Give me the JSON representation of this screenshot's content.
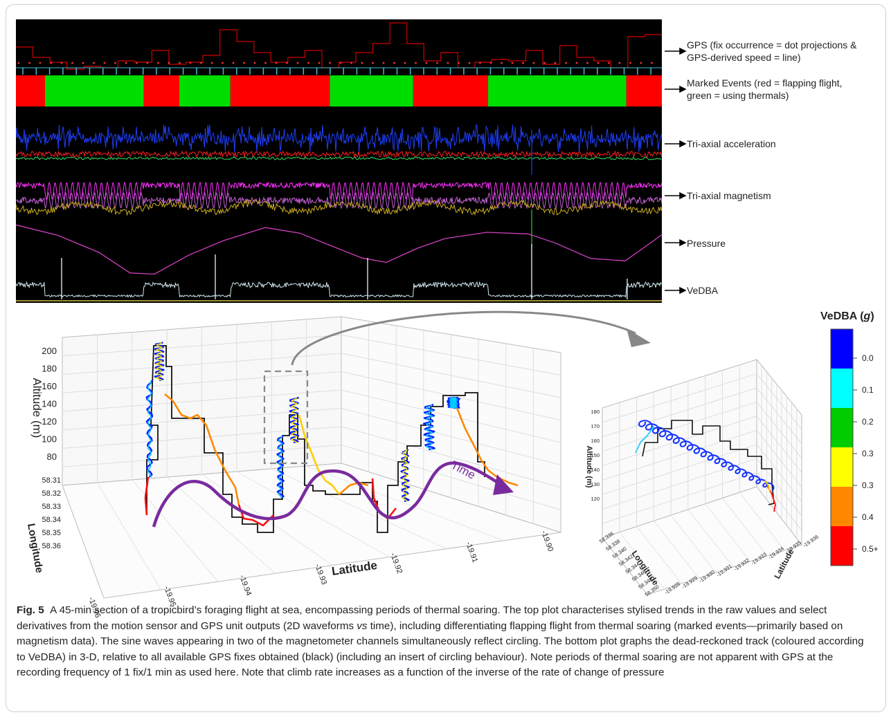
{
  "top_plot": {
    "labels": [
      {
        "key": "gps",
        "text": "GPS (fix occurrence = dot projections &\nGPS-derived speed = line)"
      },
      {
        "key": "events",
        "text": "Marked Events (red = flapping flight,\ngreen = using thermals)"
      },
      {
        "key": "acc",
        "text": "Tri-axial acceleration"
      },
      {
        "key": "mag",
        "text": "Tri-axial magnetism"
      },
      {
        "key": "pressure",
        "text": "Pressure"
      },
      {
        "key": "vedba",
        "text": "VeDBA"
      }
    ],
    "marked_events": [
      {
        "state": "flapping",
        "start": 0.0,
        "end": 0.045
      },
      {
        "state": "thermal",
        "start": 0.045,
        "end": 0.198
      },
      {
        "state": "flapping",
        "start": 0.198,
        "end": 0.253
      },
      {
        "state": "thermal",
        "start": 0.253,
        "end": 0.332
      },
      {
        "state": "flapping",
        "start": 0.332,
        "end": 0.486
      },
      {
        "state": "thermal",
        "start": 0.486,
        "end": 0.615
      },
      {
        "state": "flapping",
        "start": 0.615,
        "end": 0.731
      },
      {
        "state": "thermal",
        "start": 0.731,
        "end": 0.945
      },
      {
        "state": "flapping",
        "start": 0.945,
        "end": 1.0
      }
    ],
    "colors": {
      "flapping": "#ff0000",
      "thermal": "#00dd00",
      "background": "#000000"
    }
  },
  "main3d": {
    "zlabel": "Altitude (m)",
    "ylabel": "Longitude",
    "xlabel": "Latitude",
    "z_ticks": [
      "200",
      "180",
      "160",
      "140",
      "120",
      "100",
      "80"
    ],
    "y_ticks": [
      "58.31",
      "58.32",
      "58.33",
      "58.34",
      "58.35",
      "58.36"
    ],
    "x_ticks": [
      "-19.96",
      "-19.95",
      "-19.94",
      "-19.93",
      "-19.92",
      "-19.91",
      "-19.90"
    ],
    "time_label": "Time"
  },
  "inset3d": {
    "zlabel": "Altitude (m)",
    "ylabel": "Longitude",
    "xlabel": "Latitude",
    "z_ticks": [
      "180",
      "170",
      "160",
      "150",
      "140",
      "130",
      "120"
    ],
    "y_ticks": [
      "58.336",
      "58.338",
      "58.340",
      "58.342",
      "58.344",
      "58.346",
      "58.348",
      "58.350"
    ],
    "x_ticks": [
      "-19.936",
      "-19.935",
      "-19.934",
      "-19.933",
      "-19.932",
      "-19.931",
      "-19.930",
      "-19.929",
      "-19.928"
    ]
  },
  "colorbar": {
    "title": "VeDBA (",
    "title_unit": "g",
    "title_end": ")",
    "ticks": [
      "0.0",
      "0.1",
      "0.2",
      "0.3",
      "0.3",
      "0.4",
      "0.5+"
    ],
    "colors": [
      "#0000ff",
      "#00ffff",
      "#00cc00",
      "#ffff00",
      "#ff8800",
      "#ff0000"
    ]
  },
  "caption": {
    "fig": "Fig. 5",
    "text_a": "A 45-min section of a tropicbird’s foraging flight at sea, encompassing periods of thermal soaring. The top plot characterises stylised trends in the raw values and select derivatives from the motion sensor and GPS unit outputs (2D waveforms ",
    "vs": "vs",
    "text_b": " time), including differentiating flapping flight from thermal soaring (marked events—primarily based on magnetism data). The sine waves appearing in two of the magnetometer channels simultaneously reflect circling. The bottom plot graphs the dead-reckoned track (coloured according to VeDBA) in 3-D, relative to all available GPS fixes obtained (black) (including an insert of circling behaviour). Note periods of thermal soaring are not apparent with GPS at the recording frequency of 1 fix/1 min as used here. Note that climb rate increases as a function of the inverse of the rate of change of pressure"
  }
}
